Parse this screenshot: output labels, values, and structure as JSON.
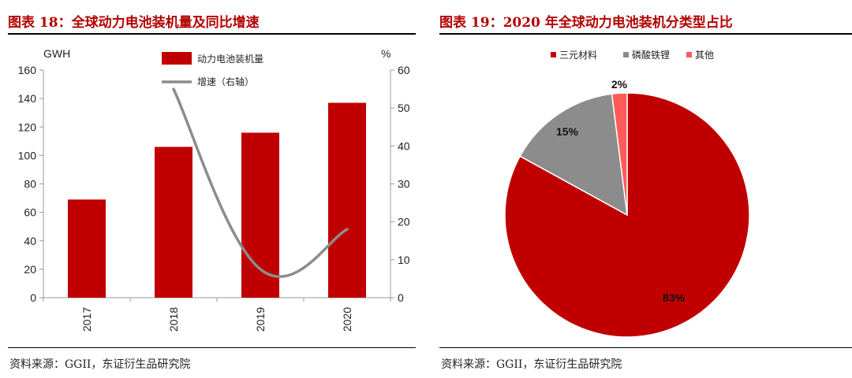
{
  "left": {
    "title": "图表 18：全球动力电池装机量及同比增速",
    "source": "资料来源：GGII，东证衍生品研究院"
  },
  "right": {
    "title": "图表 19：2020 年全球动力电池装机分类型占比",
    "source": "资料来源：GGII，东证衍生品研究院"
  },
  "colors": {
    "bar": "#c00000",
    "line": "#8c8c8c",
    "title": "#b30000"
  },
  "chart_data": [
    {
      "type": "bar",
      "categories": [
        "2017",
        "2018",
        "2019",
        "2020"
      ],
      "series": [
        {
          "name": "动力电池装机量",
          "type": "bar",
          "axis": "left",
          "values": [
            69,
            106,
            116,
            137
          ],
          "color": "#c00000"
        },
        {
          "name": "增速（右轴）",
          "type": "line",
          "axis": "right",
          "values": [
            null,
            55,
            7.5,
            18
          ],
          "color": "#8c8c8c"
        }
      ],
      "ylabel": "GWH",
      "ylabel_right": "%",
      "ylim": [
        0,
        160
      ],
      "ylim_right": [
        0,
        60
      ],
      "yticks": [
        0,
        20,
        40,
        60,
        80,
        100,
        120,
        140,
        160
      ],
      "yticks_right": [
        0,
        10,
        20,
        30,
        40,
        50,
        60
      ],
      "grid": false,
      "legend_position": "top"
    },
    {
      "type": "pie",
      "labels": [
        "三元材料",
        "磷酸铁锂",
        "其他"
      ],
      "values": [
        83,
        15,
        2
      ],
      "value_labels": [
        "83%",
        "15%",
        "2%"
      ],
      "colors": [
        "#c00000",
        "#8c8c8c",
        "#ff5b5b"
      ],
      "legend_position": "top"
    }
  ]
}
